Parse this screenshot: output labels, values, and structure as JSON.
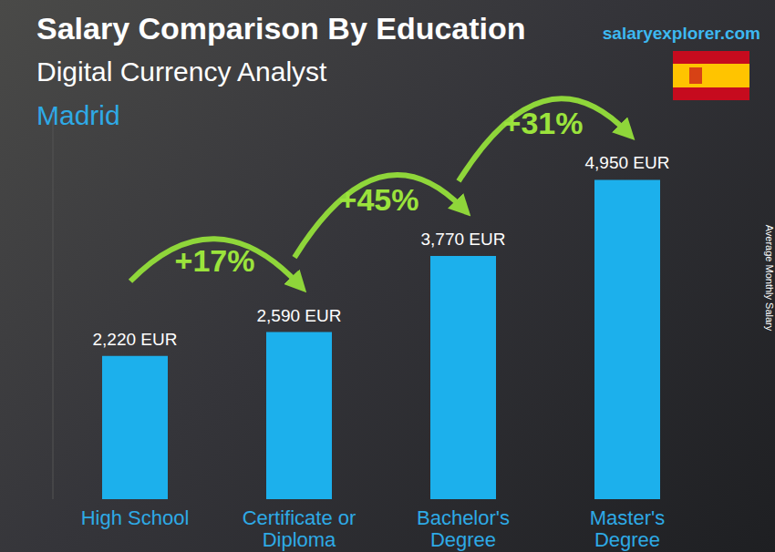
{
  "chart_data": {
    "type": "bar",
    "title": "Salary Comparison By Education",
    "subtitle": "Digital Currency Analyst",
    "location": "Madrid",
    "source": "salaryexplorer.com",
    "y_label": "Average Monthly Salary",
    "categories": [
      "High School",
      "Certificate or Diploma",
      "Bachelor's Degree",
      "Master's Degree"
    ],
    "values": [
      2220,
      2590,
      3770,
      4950
    ],
    "value_labels": [
      "2,220 EUR",
      "2,590 EUR",
      "3,770 EUR",
      "4,950 EUR"
    ],
    "annotations": [
      "+17%",
      "+45%",
      "+31%"
    ],
    "color": "#1cb0ec",
    "ylim": [
      0,
      6000
    ],
    "tick_labels": "x",
    "data_labels": true,
    "grid": false
  }
}
